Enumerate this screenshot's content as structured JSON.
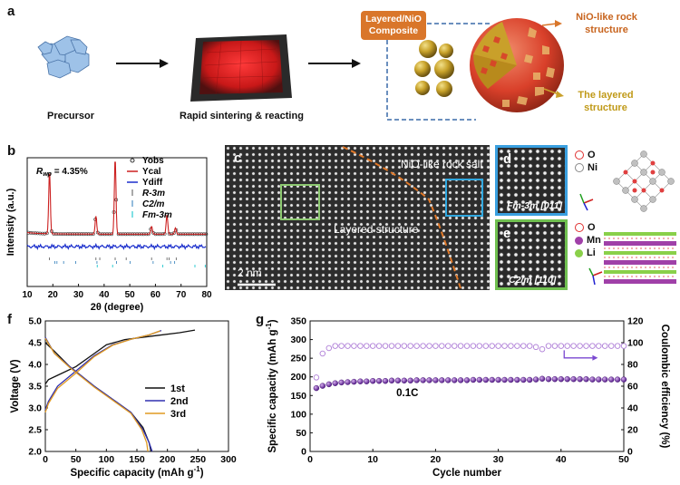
{
  "panel_a": {
    "label": "a",
    "precursor": "Precursor",
    "sintering": "Rapid sintering & reacting",
    "composite": "Layered/NiO Composite",
    "nio_rock": "NiO-like rock structure",
    "layered": "The layered structure"
  },
  "panel_b": {
    "label": "b",
    "rwp_prefix": "R",
    "rwp_sub": "wp",
    "rwp_value": "= 4.35%",
    "legend": [
      "Yobs",
      "Ycal",
      "Ydiff",
      "R-3m",
      "C2/m",
      "Fm-3m"
    ],
    "legend_colors": [
      "#333333",
      "#cc2020",
      "#1a2ecc",
      "#555555",
      "#2a7ab8",
      "#00c0c8"
    ]
  },
  "panel_c": {
    "label": "c",
    "nio_label": "NiO-like rock salt",
    "layered_label": "Layered structure",
    "scale": "2 nm"
  },
  "panel_d": {
    "label": "d",
    "zone": "Fm-3m [011]",
    "legend": [
      "O",
      "Ni"
    ],
    "legend_colors": [
      "#e03030",
      "#b0b0b0"
    ]
  },
  "panel_e": {
    "label": "e",
    "zone": "C2/m [110]",
    "legend": [
      "O",
      "Mn",
      "Li"
    ],
    "legend_colors": [
      "#e03030",
      "#a040a8",
      "#8ad04a"
    ]
  },
  "chart_data": [
    {
      "id": "b",
      "type": "scatter",
      "title": "",
      "xlabel": "2θ (degree)",
      "ylabel": "Intensity (a.u.)",
      "xlim": [
        10,
        80
      ],
      "xticks": [
        10,
        20,
        30,
        40,
        50,
        60,
        70,
        80
      ],
      "peaks": [
        {
          "x": 18.7,
          "y": 0.8
        },
        {
          "x": 36.8,
          "y": 0.23
        },
        {
          "x": 44.3,
          "y": 0.97
        },
        {
          "x": 58.5,
          "y": 0.1
        },
        {
          "x": 64.5,
          "y": 0.25
        },
        {
          "x": 67.8,
          "y": 0.08
        }
      ]
    },
    {
      "id": "f",
      "type": "line",
      "xlabel": "Specific capacity (mAh g",
      "ylabel": "Voltage (V)",
      "xlim": [
        0,
        300
      ],
      "ylim": [
        2.0,
        5.0
      ],
      "xticks": [
        0,
        50,
        100,
        150,
        200,
        250,
        300
      ],
      "yticks": [
        2.0,
        2.5,
        3.0,
        3.5,
        4.0,
        4.5,
        5.0
      ],
      "series": [
        {
          "name": "1st",
          "color": "#111111",
          "charge": [
            [
              0,
              3.55
            ],
            [
              5,
              3.65
            ],
            [
              20,
              3.75
            ],
            [
              50,
              3.95
            ],
            [
              80,
              4.25
            ],
            [
              100,
              4.45
            ],
            [
              130,
              4.57
            ],
            [
              180,
              4.66
            ],
            [
              220,
              4.73
            ],
            [
              245,
              4.79
            ]
          ],
          "discharge": [
            [
              0,
              4.5
            ],
            [
              15,
              4.3
            ],
            [
              40,
              3.95
            ],
            [
              80,
              3.5
            ],
            [
              110,
              3.2
            ],
            [
              140,
              2.9
            ],
            [
              160,
              2.55
            ],
            [
              170,
              2.2
            ],
            [
              173,
              2.0
            ]
          ]
        },
        {
          "name": "2nd",
          "color": "#3030b0",
          "charge": [
            [
              0,
              2.95
            ],
            [
              5,
              3.15
            ],
            [
              20,
              3.5
            ],
            [
              50,
              3.85
            ],
            [
              80,
              4.2
            ],
            [
              110,
              4.45
            ],
            [
              140,
              4.58
            ],
            [
              170,
              4.68
            ],
            [
              190,
              4.78
            ]
          ],
          "discharge": [
            [
              0,
              4.62
            ],
            [
              15,
              4.25
            ],
            [
              40,
              3.95
            ],
            [
              80,
              3.5
            ],
            [
              110,
              3.2
            ],
            [
              140,
              2.9
            ],
            [
              160,
              2.5
            ],
            [
              170,
              2.2
            ],
            [
              175,
              2.0
            ]
          ]
        },
        {
          "name": "3rd",
          "color": "#e09a20",
          "charge": [
            [
              0,
              2.9
            ],
            [
              5,
              3.1
            ],
            [
              20,
              3.45
            ],
            [
              50,
              3.8
            ],
            [
              80,
              4.18
            ],
            [
              110,
              4.44
            ],
            [
              140,
              4.58
            ],
            [
              170,
              4.68
            ],
            [
              188,
              4.77
            ]
          ],
          "discharge": [
            [
              0,
              4.6
            ],
            [
              15,
              4.25
            ],
            [
              40,
              3.93
            ],
            [
              80,
              3.48
            ],
            [
              110,
              3.18
            ],
            [
              140,
              2.88
            ],
            [
              158,
              2.5
            ],
            [
              166,
              2.2
            ],
            [
              168,
              2.0
            ]
          ]
        }
      ]
    },
    {
      "id": "g",
      "type": "scatter",
      "xlabel": "Cycle number",
      "ylabel": "Specific capacity (mAh g",
      "y2label": "Coulombic efficiency (%)",
      "xlim": [
        0,
        50
      ],
      "ylim": [
        0,
        350
      ],
      "y2lim": [
        0,
        120
      ],
      "xticks": [
        0,
        10,
        20,
        30,
        40,
        50
      ],
      "yticks": [
        0,
        50,
        100,
        150,
        200,
        250,
        300,
        350
      ],
      "y2ticks": [
        0,
        20,
        40,
        60,
        80,
        100,
        120
      ],
      "annotation": "0.1C",
      "capacity": [
        170,
        176,
        180,
        183,
        185,
        186,
        187,
        188,
        188,
        189,
        189,
        189,
        190,
        190,
        190,
        190,
        191,
        191,
        191,
        191,
        191,
        191,
        191,
        191,
        191,
        192,
        192,
        192,
        192,
        192,
        192,
        192,
        192,
        192,
        192,
        193,
        195,
        194,
        194,
        194,
        194,
        194,
        194,
        194,
        193,
        193,
        193,
        193,
        193,
        193
      ],
      "efficiency": [
        68,
        90,
        95,
        97,
        97,
        97,
        97,
        97,
        97,
        97,
        97,
        97,
        97,
        97,
        97,
        97,
        97,
        97,
        97,
        97,
        97,
        97,
        97,
        97,
        97,
        97,
        97,
        97,
        97,
        97,
        97,
        97,
        97,
        97,
        97,
        96,
        94,
        97,
        97,
        97,
        97,
        97,
        97,
        97,
        97,
        97,
        97,
        97,
        97,
        97
      ]
    }
  ]
}
